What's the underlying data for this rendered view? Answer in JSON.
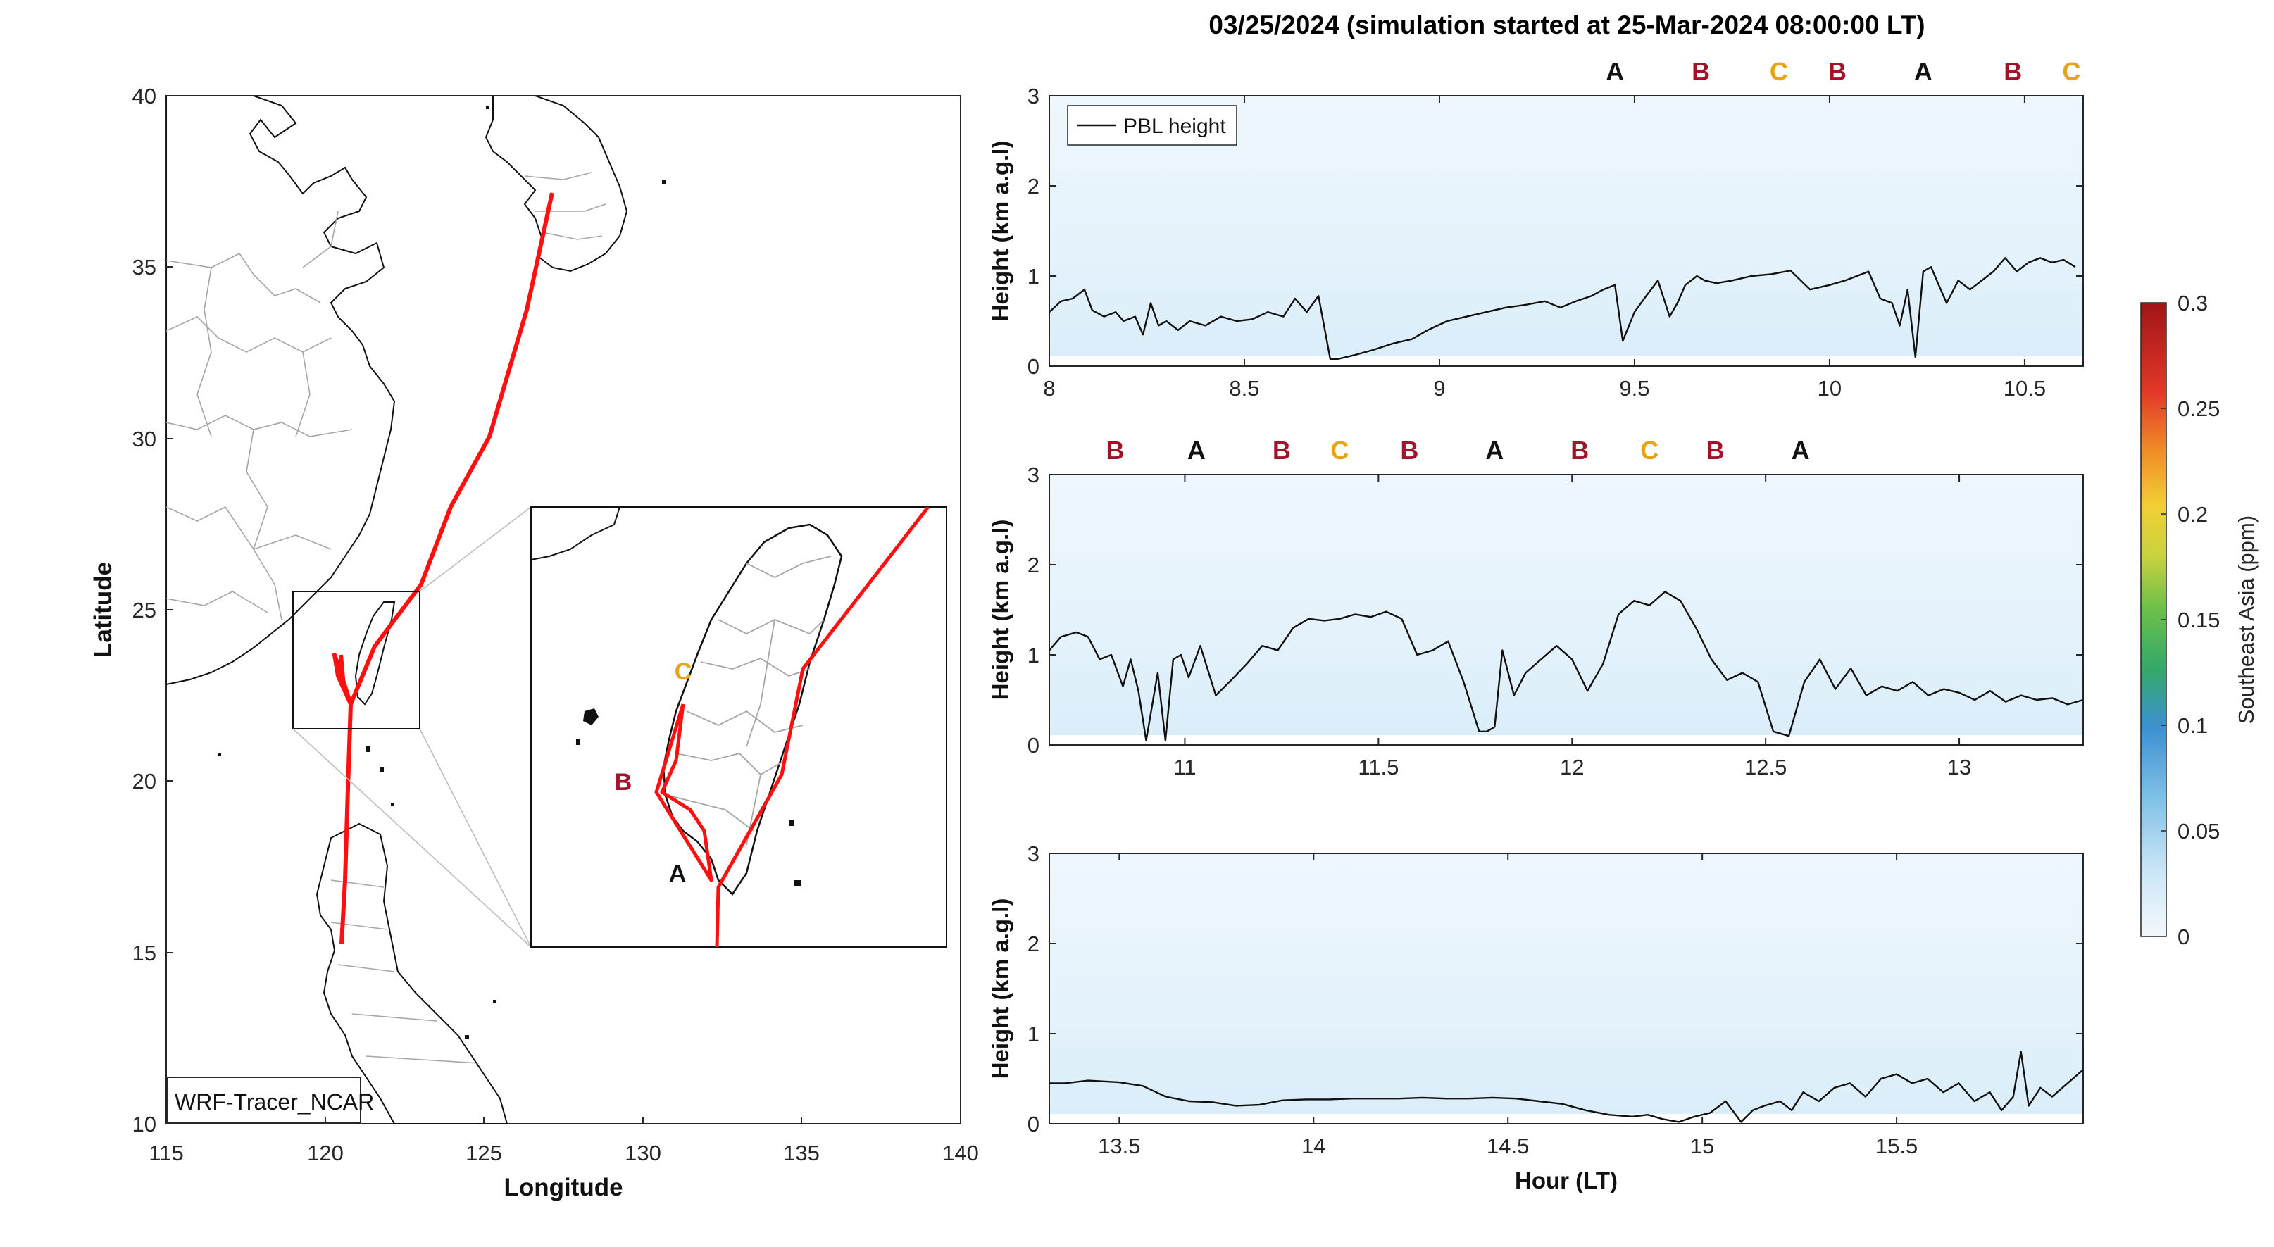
{
  "title": "03/25/2024 (simulation started at 25-Mar-2024 08:00:00 LT)",
  "colors": {
    "track": "#ff1010",
    "label_a": "#111111",
    "label_b": "#a0142a",
    "label_c": "#e8a317",
    "pbl_line": "#111111",
    "tracer_fill": "#e3f1fb",
    "coast": "#111111",
    "border": "#a6a6a6"
  },
  "map": {
    "xlabel": "Longitude",
    "ylabel": "Latitude",
    "xticks": [
      "115",
      "120",
      "125",
      "130",
      "135",
      "140"
    ],
    "yticks": [
      "10",
      "15",
      "20",
      "25",
      "30",
      "35",
      "40"
    ],
    "xlim": [
      115,
      140
    ],
    "ylim": [
      10,
      40
    ],
    "model_label": "WRF-Tracer_NCAR",
    "inset_labels": [
      "A",
      "B",
      "C"
    ]
  },
  "colorbar": {
    "label": "Southeast Asia (ppm)",
    "ticks": [
      "0",
      "0.05",
      "0.1",
      "0.15",
      "0.2",
      "0.25",
      "0.3"
    ],
    "range": [
      0,
      0.3
    ]
  },
  "chart_data": [
    {
      "type": "line",
      "title": "03/25/2024 (simulation started at 25-Mar-2024 08:00:00 LT)",
      "ylabel": "Height (km a.g.l)",
      "xlabel": "",
      "xlim": [
        8,
        10.65
      ],
      "ylim": [
        0,
        3
      ],
      "xticks": [
        "8",
        "8.5",
        "9",
        "9.5",
        "10",
        "10.5"
      ],
      "yticks": [
        "0",
        "1",
        "2",
        "3"
      ],
      "legend": [
        "PBL height"
      ],
      "legend_position": "top-left",
      "markers": [
        {
          "x": 9.45,
          "label": "A"
        },
        {
          "x": 9.67,
          "label": "B"
        },
        {
          "x": 9.87,
          "label": "C"
        },
        {
          "x": 10.02,
          "label": "B"
        },
        {
          "x": 10.24,
          "label": "A"
        },
        {
          "x": 10.47,
          "label": "B"
        },
        {
          "x": 10.62,
          "label": "C"
        }
      ],
      "series": [
        {
          "name": "PBL height",
          "x": [
            8,
            8.03,
            8.06,
            8.09,
            8.11,
            8.14,
            8.17,
            8.19,
            8.22,
            8.24,
            8.26,
            8.28,
            8.3,
            8.33,
            8.36,
            8.4,
            8.44,
            8.48,
            8.52,
            8.56,
            8.6,
            8.63,
            8.66,
            8.69,
            8.72,
            8.74,
            8.78,
            8.83,
            8.88,
            8.93,
            8.97,
            9.02,
            9.07,
            9.12,
            9.17,
            9.22,
            9.27,
            9.31,
            9.35,
            9.39,
            9.42,
            9.45,
            9.47,
            9.5,
            9.53,
            9.56,
            9.59,
            9.61,
            9.63,
            9.66,
            9.68,
            9.71,
            9.75,
            9.8,
            9.85,
            9.9,
            9.95,
            10.0,
            10.04,
            10.07,
            10.1,
            10.13,
            10.16,
            10.18,
            10.2,
            10.22,
            10.24,
            10.26,
            10.28,
            10.3,
            10.33,
            10.36,
            10.39,
            10.42,
            10.45,
            10.48,
            10.51,
            10.54,
            10.57,
            10.6,
            10.63
          ],
          "y": [
            0.6,
            0.72,
            0.75,
            0.85,
            0.62,
            0.55,
            0.6,
            0.5,
            0.55,
            0.35,
            0.7,
            0.45,
            0.5,
            0.4,
            0.5,
            0.45,
            0.55,
            0.5,
            0.52,
            0.6,
            0.55,
            0.75,
            0.6,
            0.78,
            0.08,
            0.08,
            0.12,
            0.18,
            0.25,
            0.3,
            0.4,
            0.5,
            0.55,
            0.6,
            0.65,
            0.68,
            0.72,
            0.65,
            0.72,
            0.78,
            0.85,
            0.9,
            0.28,
            0.6,
            0.78,
            0.95,
            0.55,
            0.7,
            0.9,
            1.0,
            0.95,
            0.92,
            0.95,
            1.0,
            1.02,
            1.06,
            0.85,
            0.9,
            0.95,
            1.0,
            1.05,
            0.75,
            0.7,
            0.45,
            0.85,
            0.1,
            1.05,
            1.1,
            0.9,
            0.7,
            0.95,
            0.85,
            0.95,
            1.05,
            1.2,
            1.05,
            1.15,
            1.2,
            1.15,
            1.18,
            1.1
          ]
        }
      ]
    },
    {
      "type": "line",
      "ylabel": "Height (km a.g.l)",
      "xlabel": "",
      "xlim": [
        10.65,
        13.32
      ],
      "ylim": [
        0,
        3
      ],
      "xticks": [
        "11",
        "11.5",
        "12",
        "12.5",
        "13"
      ],
      "yticks": [
        "0",
        "1",
        "2",
        "3"
      ],
      "markers": [
        {
          "x": 10.82,
          "label": "B"
        },
        {
          "x": 11.03,
          "label": "A"
        },
        {
          "x": 11.25,
          "label": "B"
        },
        {
          "x": 11.4,
          "label": "C"
        },
        {
          "x": 11.58,
          "label": "B"
        },
        {
          "x": 11.8,
          "label": "A"
        },
        {
          "x": 12.02,
          "label": "B"
        },
        {
          "x": 12.2,
          "label": "C"
        },
        {
          "x": 12.37,
          "label": "B"
        },
        {
          "x": 12.59,
          "label": "A"
        }
      ],
      "series": [
        {
          "name": "PBL height",
          "x": [
            10.65,
            10.68,
            10.72,
            10.75,
            10.78,
            10.81,
            10.84,
            10.86,
            10.88,
            10.9,
            10.93,
            10.95,
            10.97,
            10.99,
            11.01,
            11.04,
            11.08,
            11.12,
            11.16,
            11.2,
            11.24,
            11.28,
            11.32,
            11.36,
            11.4,
            11.44,
            11.48,
            11.52,
            11.56,
            11.6,
            11.64,
            11.68,
            11.72,
            11.76,
            11.78,
            11.8,
            11.82,
            11.85,
            11.88,
            11.92,
            11.96,
            12.0,
            12.04,
            12.08,
            12.12,
            12.16,
            12.2,
            12.24,
            12.28,
            12.32,
            12.36,
            12.4,
            12.44,
            12.48,
            12.52,
            12.56,
            12.6,
            12.64,
            12.68,
            12.72,
            12.76,
            12.8,
            12.84,
            12.88,
            12.92,
            12.96,
            13.0,
            13.04,
            13.08,
            13.12,
            13.16,
            13.2,
            13.24,
            13.28,
            13.32
          ],
          "y": [
            1.05,
            1.2,
            1.25,
            1.2,
            0.95,
            1.0,
            0.65,
            0.95,
            0.6,
            0.05,
            0.8,
            0.05,
            0.95,
            1.0,
            0.75,
            1.1,
            0.55,
            0.72,
            0.9,
            1.1,
            1.05,
            1.3,
            1.4,
            1.38,
            1.4,
            1.45,
            1.42,
            1.48,
            1.4,
            1.0,
            1.05,
            1.15,
            0.7,
            0.15,
            0.15,
            0.2,
            1.05,
            0.55,
            0.8,
            0.95,
            1.1,
            0.95,
            0.6,
            0.9,
            1.45,
            1.6,
            1.55,
            1.7,
            1.6,
            1.3,
            0.95,
            0.72,
            0.8,
            0.7,
            0.15,
            0.1,
            0.7,
            0.95,
            0.62,
            0.85,
            0.55,
            0.65,
            0.6,
            0.7,
            0.55,
            0.62,
            0.58,
            0.5,
            0.6,
            0.48,
            0.55,
            0.5,
            0.52,
            0.45,
            0.5
          ]
        }
      ]
    },
    {
      "type": "line",
      "ylabel": "Height (km a.g.l)",
      "xlabel": "Hour (LT)",
      "xlim": [
        13.32,
        15.98
      ],
      "ylim": [
        0,
        3
      ],
      "xticks": [
        "13.5",
        "14",
        "14.5",
        "15",
        "15.5"
      ],
      "yticks": [
        "0",
        "1",
        "2",
        "3"
      ],
      "series": [
        {
          "name": "PBL height",
          "x": [
            13.32,
            13.36,
            13.42,
            13.5,
            13.56,
            13.62,
            13.68,
            13.74,
            13.8,
            13.86,
            13.92,
            13.98,
            14.04,
            14.1,
            14.16,
            14.22,
            14.28,
            14.34,
            14.4,
            14.46,
            14.52,
            14.58,
            14.64,
            14.7,
            14.76,
            14.82,
            14.86,
            14.9,
            14.94,
            14.98,
            15.02,
            15.06,
            15.1,
            15.13,
            15.16,
            15.2,
            15.23,
            15.26,
            15.3,
            15.34,
            15.38,
            15.42,
            15.46,
            15.5,
            15.54,
            15.58,
            15.62,
            15.66,
            15.7,
            15.74,
            15.77,
            15.8,
            15.82,
            15.84,
            15.87,
            15.9,
            15.94,
            15.98
          ],
          "y": [
            0.45,
            0.45,
            0.48,
            0.46,
            0.42,
            0.3,
            0.25,
            0.24,
            0.2,
            0.21,
            0.26,
            0.27,
            0.27,
            0.28,
            0.28,
            0.28,
            0.29,
            0.28,
            0.28,
            0.29,
            0.28,
            0.25,
            0.22,
            0.15,
            0.1,
            0.08,
            0.1,
            0.05,
            0.02,
            0.08,
            0.12,
            0.25,
            0.02,
            0.15,
            0.2,
            0.25,
            0.15,
            0.35,
            0.25,
            0.4,
            0.45,
            0.3,
            0.5,
            0.55,
            0.45,
            0.5,
            0.35,
            0.45,
            0.25,
            0.35,
            0.15,
            0.3,
            0.8,
            0.2,
            0.4,
            0.3,
            0.45,
            0.6
          ]
        }
      ]
    }
  ]
}
